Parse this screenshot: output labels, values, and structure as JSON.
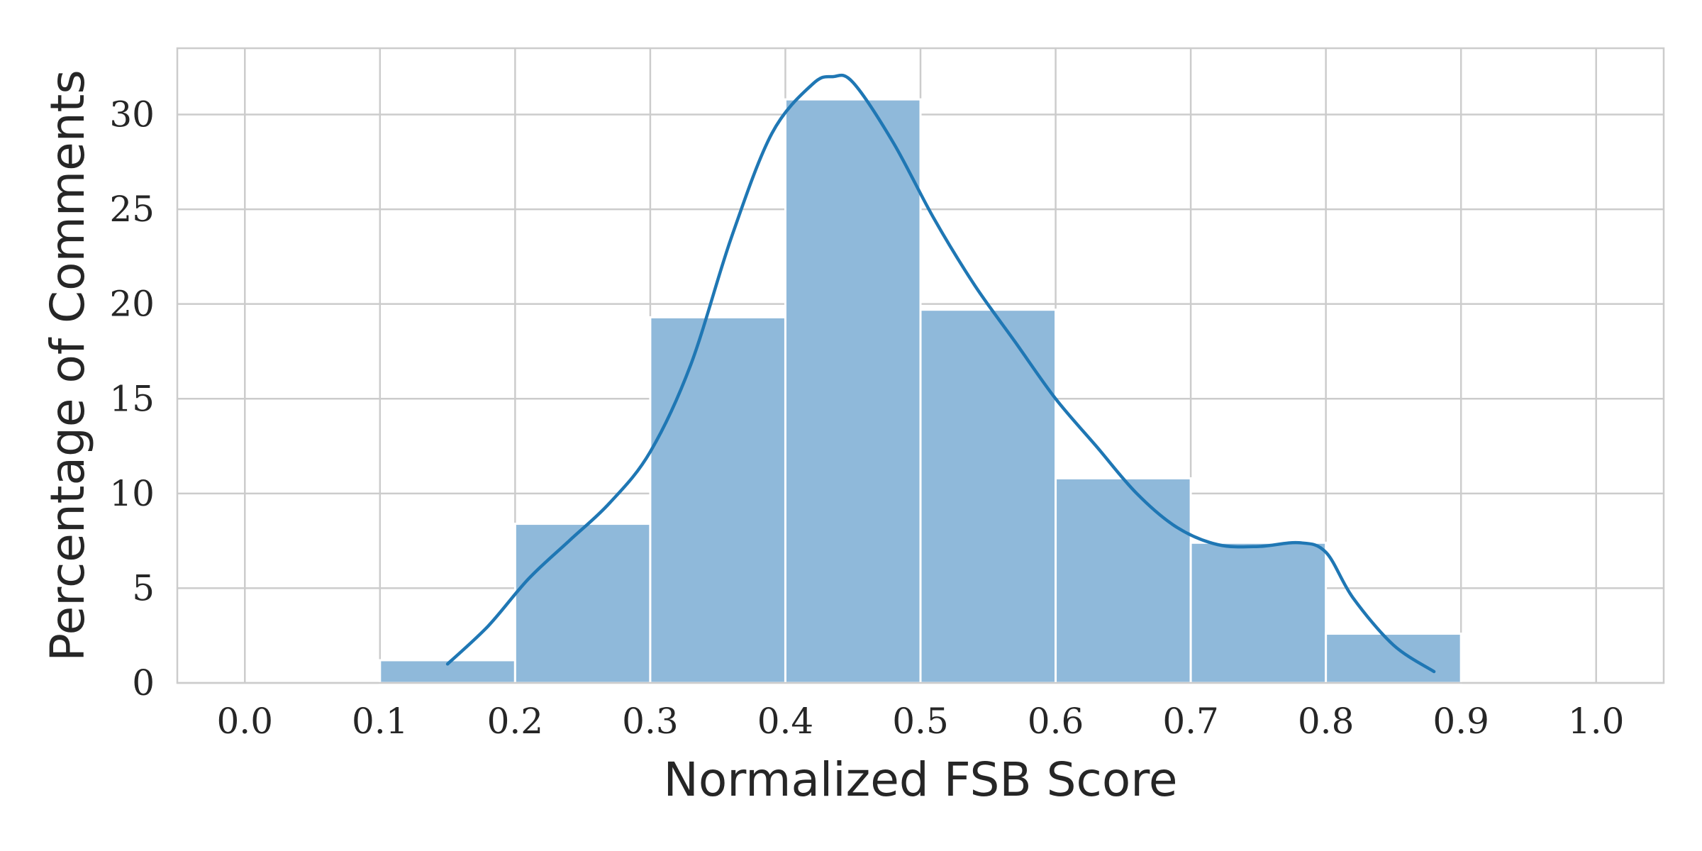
{
  "chart_data": {
    "type": "bar",
    "title": "",
    "xlabel": "Normalized FSB Score",
    "ylabel": "Percentage of Comments",
    "xlim": [
      -0.05,
      1.05
    ],
    "ylim": [
      0,
      33.5
    ],
    "xticks": [
      "0.0",
      "0.1",
      "0.2",
      "0.3",
      "0.4",
      "0.5",
      "0.6",
      "0.7",
      "0.8",
      "0.9",
      "1.0"
    ],
    "yticks": [
      "0",
      "5",
      "10",
      "15",
      "20",
      "25",
      "30"
    ],
    "grid": true,
    "legend": "none",
    "bins": [
      {
        "start": 0.1,
        "end": 0.2,
        "value": 1.2
      },
      {
        "start": 0.2,
        "end": 0.3,
        "value": 8.4
      },
      {
        "start": 0.3,
        "end": 0.4,
        "value": 19.3
      },
      {
        "start": 0.4,
        "end": 0.5,
        "value": 30.8
      },
      {
        "start": 0.5,
        "end": 0.6,
        "value": 19.7
      },
      {
        "start": 0.6,
        "end": 0.7,
        "value": 10.8
      },
      {
        "start": 0.7,
        "end": 0.8,
        "value": 7.4
      },
      {
        "start": 0.8,
        "end": 0.9,
        "value": 2.6
      }
    ],
    "kde_line": {
      "x": [
        0.15,
        0.18,
        0.21,
        0.24,
        0.27,
        0.3,
        0.33,
        0.36,
        0.39,
        0.42,
        0.435,
        0.45,
        0.48,
        0.51,
        0.54,
        0.57,
        0.6,
        0.63,
        0.66,
        0.69,
        0.72,
        0.75,
        0.78,
        0.8,
        0.82,
        0.85,
        0.88
      ],
      "y": [
        1.0,
        3.0,
        5.5,
        7.5,
        9.5,
        12.2,
        16.8,
        23.5,
        29.0,
        31.6,
        32.0,
        31.7,
        28.5,
        24.5,
        21.0,
        18.0,
        15.0,
        12.5,
        10.0,
        8.2,
        7.3,
        7.2,
        7.4,
        6.9,
        4.5,
        2.0,
        0.6
      ]
    },
    "colors": {
      "bar_fill": "#8fb9da",
      "bar_edge": "#ffffff",
      "kde_line": "#1f77b4",
      "grid": "#cccccc",
      "axes_frame": "#cccccc",
      "text": "#262626"
    }
  }
}
